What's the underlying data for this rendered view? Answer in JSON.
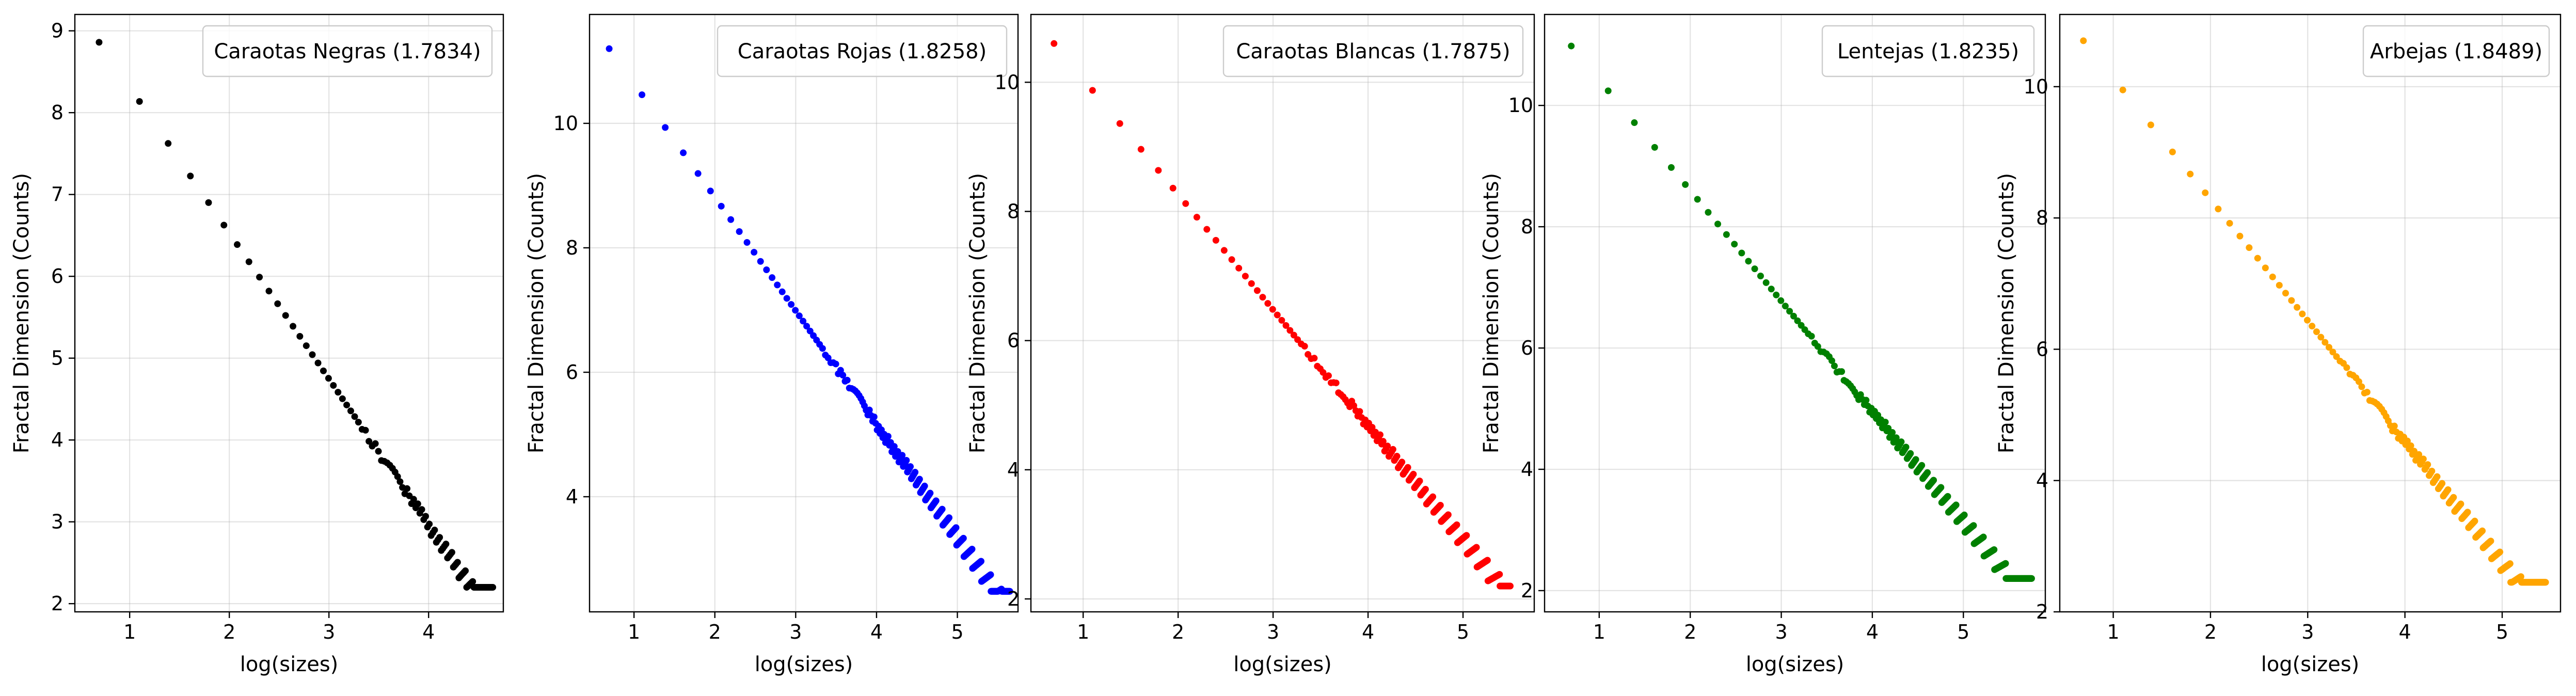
{
  "figure": {
    "background": "#ffffff"
  },
  "chart_data": [
    {
      "type": "scatter",
      "xlabel": "log(sizes)",
      "ylabel": "Fractal Dimension (Counts)",
      "xlim": [
        0.45,
        4.75
      ],
      "ylim": [
        1.9,
        9.2
      ],
      "xticks": [
        1,
        2,
        3,
        4
      ],
      "yticks": [
        2,
        3,
        4,
        5,
        6,
        7,
        8,
        9
      ],
      "grid": true,
      "legend_position": "top-right",
      "series": [
        {
          "name": "Caraotas Negras (1.7834)",
          "color": "#000000",
          "x_max": 4.65,
          "y_start": 8.86,
          "y_end": 2.2,
          "slope": -1.7834
        }
      ]
    },
    {
      "type": "scatter",
      "xlabel": "log(sizes)",
      "ylabel": "Fractal Dimension (Counts)",
      "xlim": [
        0.45,
        5.75
      ],
      "ylim": [
        2.15,
        11.75
      ],
      "xticks": [
        1,
        2,
        3,
        4,
        5
      ],
      "yticks": [
        4,
        6,
        8,
        10
      ],
      "grid": true,
      "legend_position": "top-right",
      "series": [
        {
          "name": "Caraotas Rojas (1.8258)",
          "color": "#0000ff",
          "x_max": 5.65,
          "y_start": 11.2,
          "y_end": 2.48,
          "slope": -1.8258
        }
      ]
    },
    {
      "type": "scatter",
      "xlabel": "log(sizes)",
      "ylabel": "Fractal Dimension (Counts)",
      "xlim": [
        0.45,
        5.75
      ],
      "ylim": [
        1.8,
        11.05
      ],
      "xticks": [
        1,
        2,
        3,
        4,
        5
      ],
      "yticks": [
        2,
        4,
        6,
        8,
        10
      ],
      "grid": true,
      "legend_position": "top-right",
      "series": [
        {
          "name": "Caraotas Blancas (1.7875)",
          "color": "#ff0000",
          "x_max": 5.5,
          "y_start": 10.6,
          "y_end": 2.2,
          "slope": -1.7875
        }
      ]
    },
    {
      "type": "scatter",
      "xlabel": "log(sizes)",
      "ylabel": "Fractal Dimension (Counts)",
      "xlim": [
        0.4,
        5.9
      ],
      "ylim": [
        1.65,
        11.5
      ],
      "xticks": [
        1,
        2,
        3,
        4,
        5
      ],
      "yticks": [
        2,
        4,
        6,
        8,
        10
      ],
      "grid": true,
      "legend_position": "top-right",
      "series": [
        {
          "name": "Lentejas (1.8235)",
          "color": "#008000",
          "x_max": 5.75,
          "y_start": 10.98,
          "y_end": 2.2,
          "slope": -1.8235
        }
      ]
    },
    {
      "type": "scatter",
      "xlabel": "log(sizes)",
      "ylabel": "Fractal Dimension (Counts)",
      "xlim": [
        0.45,
        5.6
      ],
      "ylim": [
        2.0,
        11.1
      ],
      "xticks": [
        1,
        2,
        3,
        4,
        5
      ],
      "yticks": [
        2,
        4,
        6,
        8,
        10
      ],
      "grid": true,
      "legend_position": "top-right",
      "series": [
        {
          "name": "Arbejas (1.8489)",
          "color": "#ffa500",
          "x_max": 5.45,
          "y_start": 10.7,
          "y_end": 2.45,
          "slope": -1.8489
        }
      ]
    }
  ]
}
